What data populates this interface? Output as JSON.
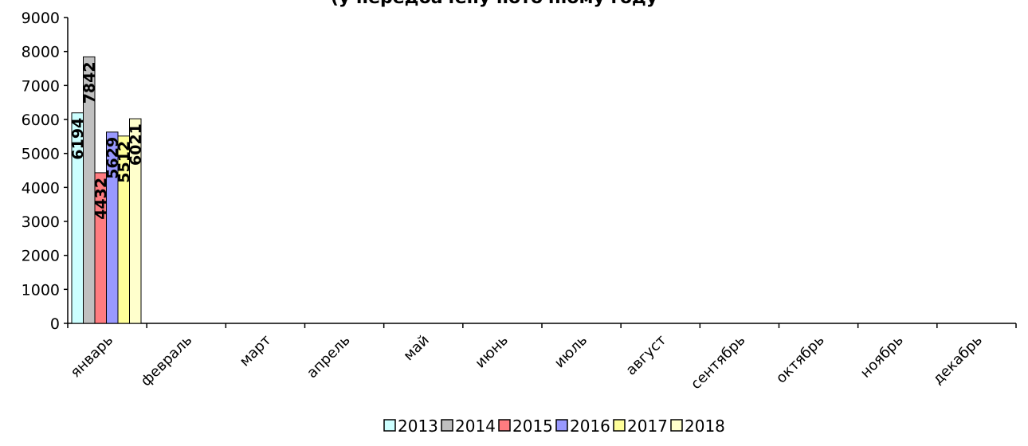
{
  "chart_data": {
    "type": "bar",
    "title": "(у передбачену поточному году",
    "xlabel": "",
    "ylabel": "",
    "ylim": [
      0,
      9000
    ],
    "y_ticks": [
      0,
      1000,
      2000,
      3000,
      4000,
      5000,
      6000,
      7000,
      8000,
      9000
    ],
    "grid": false,
    "legend_position": "bottom",
    "categories": [
      "январь",
      "февраль",
      "март",
      "апрель",
      "май",
      "июнь",
      "июль",
      "август",
      "сентябрь",
      "октябрь",
      "ноябрь",
      "декабрь"
    ],
    "series": [
      {
        "name": "2013",
        "color": "#ccffff",
        "values": [
          6194,
          null,
          null,
          null,
          null,
          null,
          null,
          null,
          null,
          null,
          null,
          null
        ]
      },
      {
        "name": "2014",
        "color": "#c0c0c0",
        "values": [
          7842,
          null,
          null,
          null,
          null,
          null,
          null,
          null,
          null,
          null,
          null,
          null
        ]
      },
      {
        "name": "2015",
        "color": "#ff7c80",
        "values": [
          4432,
          null,
          null,
          null,
          null,
          null,
          null,
          null,
          null,
          null,
          null,
          null
        ]
      },
      {
        "name": "2016",
        "color": "#9999ff",
        "values": [
          5629,
          null,
          null,
          null,
          null,
          null,
          null,
          null,
          null,
          null,
          null,
          null
        ]
      },
      {
        "name": "2017",
        "color": "#ffff99",
        "values": [
          5512,
          null,
          null,
          null,
          null,
          null,
          null,
          null,
          null,
          null,
          null,
          null
        ]
      },
      {
        "name": "2018",
        "color": "#ffffcc",
        "values": [
          6021,
          null,
          null,
          null,
          null,
          null,
          null,
          null,
          null,
          null,
          null,
          null
        ]
      }
    ]
  }
}
